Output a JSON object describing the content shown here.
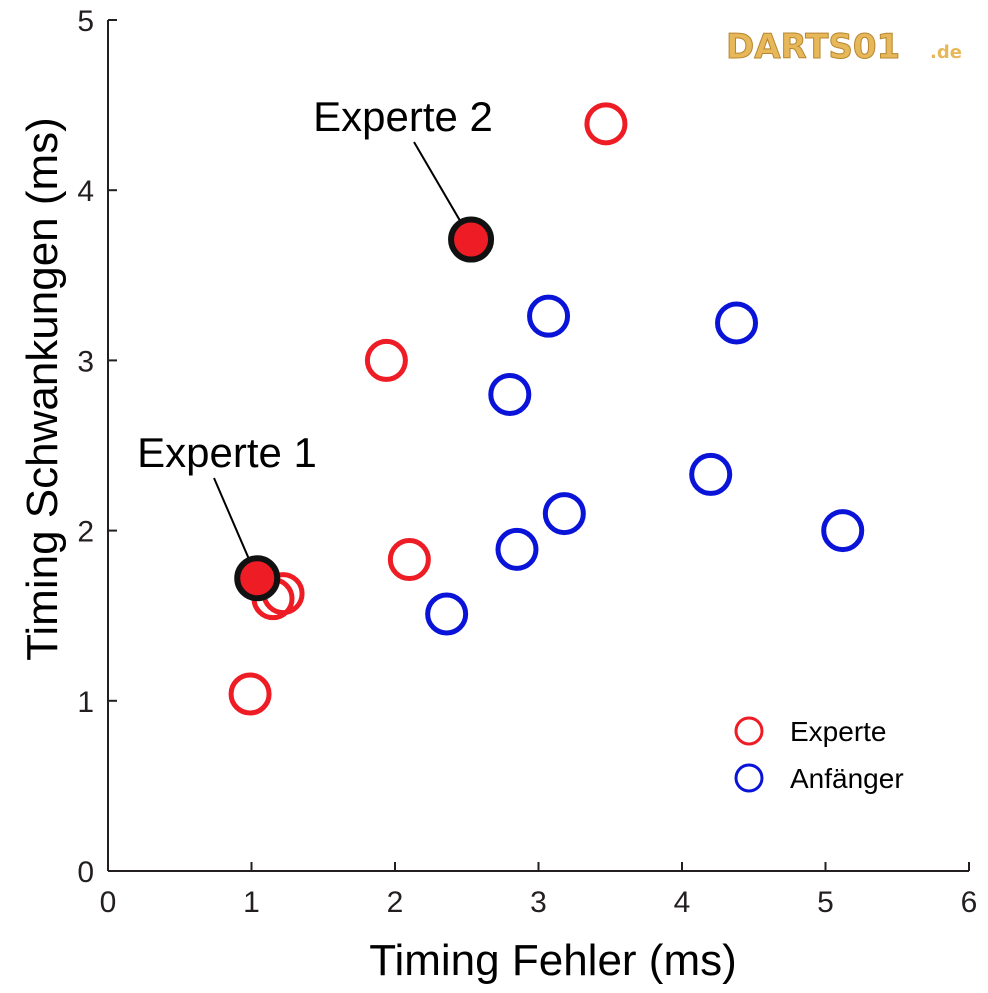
{
  "chart_data": {
    "type": "scatter",
    "xlabel": "Timing Fehler (ms)",
    "ylabel": "Timing Schwankungen (ms)",
    "xlim": [
      0,
      6
    ],
    "ylim": [
      0,
      5
    ],
    "xticks": [
      "0",
      "1",
      "2",
      "3",
      "4",
      "5",
      "6"
    ],
    "yticks": [
      "0",
      "1",
      "2",
      "3",
      "4",
      "5"
    ],
    "grid": false,
    "legend_position": "bottom-right",
    "series": [
      {
        "name": "Experte",
        "color": "#ee1c24",
        "points": [
          {
            "x": 0.99,
            "y": 1.04
          },
          {
            "x": 1.15,
            "y": 1.6
          },
          {
            "x": 1.22,
            "y": 1.63
          },
          {
            "x": 1.94,
            "y": 3.0
          },
          {
            "x": 2.1,
            "y": 1.83
          },
          {
            "x": 3.47,
            "y": 4.39
          }
        ]
      },
      {
        "name": "Anfänger",
        "color": "#0a14d8",
        "points": [
          {
            "x": 2.36,
            "y": 1.51
          },
          {
            "x": 2.8,
            "y": 2.8
          },
          {
            "x": 2.85,
            "y": 1.89
          },
          {
            "x": 3.07,
            "y": 3.26
          },
          {
            "x": 3.18,
            "y": 2.1
          },
          {
            "x": 4.2,
            "y": 2.33
          },
          {
            "x": 4.38,
            "y": 3.22
          },
          {
            "x": 5.12,
            "y": 2.0
          }
        ]
      }
    ],
    "highlighted": [
      {
        "label": "Experte 1",
        "x": 1.04,
        "y": 1.72,
        "fill": "#ee1c24",
        "stroke": "#111111"
      },
      {
        "label": "Experte 2",
        "x": 2.53,
        "y": 3.71,
        "fill": "#ee1c24",
        "stroke": "#111111"
      }
    ]
  },
  "watermark": {
    "text": "DARTS01",
    "suffix": ".de"
  }
}
